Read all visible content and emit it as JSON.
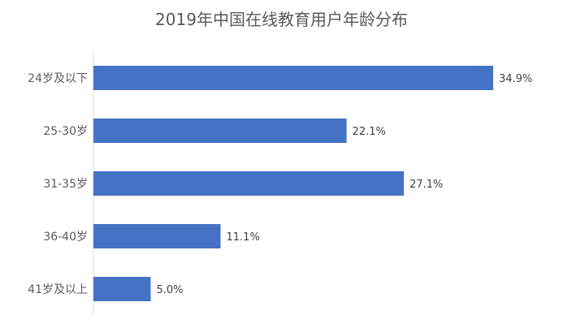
{
  "chart_data": {
    "type": "bar",
    "orientation": "horizontal",
    "title": "2019年中国在线教育用户年龄分布",
    "categories": [
      "24岁及以下",
      "25-30岁",
      "31-35岁",
      "36-40岁",
      "41岁及以上"
    ],
    "values": [
      34.9,
      22.1,
      27.1,
      11.1,
      5.0
    ],
    "data_labels": [
      "34.9%",
      "22.1%",
      "27.1%",
      "11.1%",
      "5.0%"
    ],
    "unit": "%",
    "xlim": [
      0,
      40
    ],
    "grid": false,
    "legend": "none",
    "bar_color": "#4472c4",
    "axis_color": "#d9d9d9"
  }
}
